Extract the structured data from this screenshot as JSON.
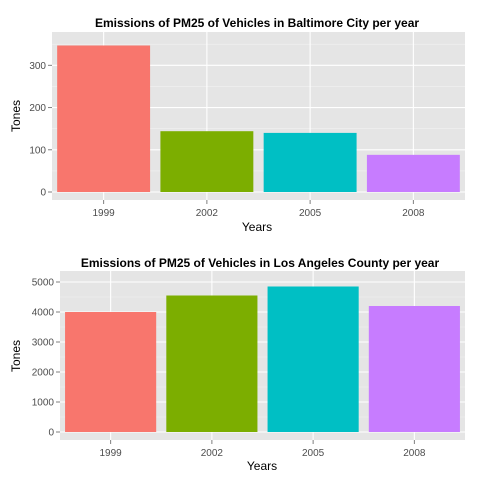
{
  "chart_data": [
    {
      "type": "bar",
      "title": "Emissions of PM25 of Vehicles in Baltimore City per year",
      "xlabel": "Years",
      "ylabel": "Tones",
      "categories": [
        "1999",
        "2002",
        "2005",
        "2008"
      ],
      "values": [
        347,
        144,
        140,
        88
      ],
      "colors": [
        "#F8766D",
        "#7CAE00",
        "#00BFC4",
        "#C77CFF"
      ],
      "ylim": [
        0,
        360
      ],
      "yticks": [
        0,
        100,
        200,
        300
      ],
      "yticklabels": [
        "0",
        "100",
        "200",
        "300"
      ],
      "yminor": [
        50,
        150,
        250,
        350
      ],
      "grid": true,
      "legend": "none",
      "panel_background": "#E5E5E5"
    },
    {
      "type": "bar",
      "title": "Emissions of PM25 of Vehicles in Los Angeles County per year",
      "xlabel": "Years",
      "ylabel": "Tones",
      "categories": [
        "1999",
        "2002",
        "2005",
        "2008"
      ],
      "values": [
        4000,
        4550,
        4850,
        4200
      ],
      "colors": [
        "#F8766D",
        "#7CAE00",
        "#00BFC4",
        "#C77CFF"
      ],
      "ylim": [
        0,
        5100
      ],
      "yticks": [
        0,
        1000,
        2000,
        3000,
        4000,
        5000
      ],
      "yticklabels": [
        "0",
        "1000",
        "2000",
        "3000",
        "4000",
        "5000"
      ],
      "yminor": [
        500,
        1500,
        2500,
        3500,
        4500
      ],
      "grid": true,
      "legend": "none",
      "panel_background": "#E5E5E5"
    }
  ]
}
